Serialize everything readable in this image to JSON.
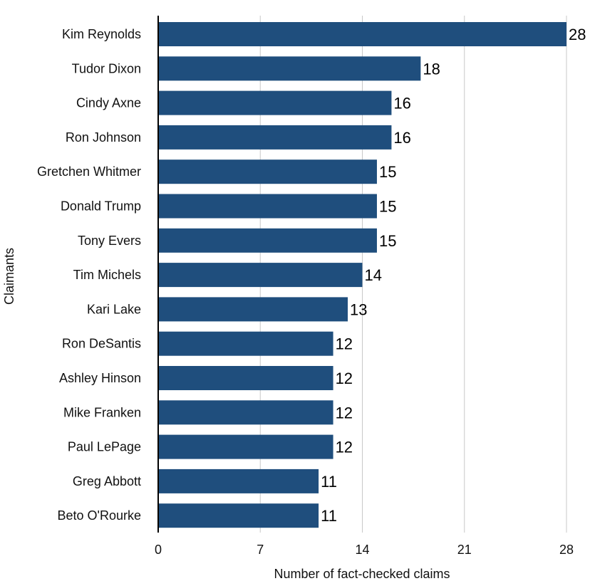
{
  "chart_data": {
    "type": "bar",
    "orientation": "horizontal",
    "title": "",
    "xlabel": "Number of fact-checked claims",
    "ylabel": "Claimants",
    "categories": [
      "Kim Reynolds",
      "Tudor Dixon",
      "Cindy Axne",
      "Ron Johnson",
      "Gretchen Whitmer",
      "Donald Trump",
      "Tony Evers",
      "Tim Michels",
      "Kari Lake",
      "Ron DeSantis",
      "Ashley Hinson",
      "Mike Franken",
      "Paul LePage",
      "Greg Abbott",
      "Beto O'Rourke"
    ],
    "values": [
      28,
      18,
      16,
      16,
      15,
      15,
      15,
      14,
      13,
      12,
      12,
      12,
      12,
      11,
      11
    ],
    "xlim": [
      0,
      28
    ],
    "xticks": [
      0,
      7,
      14,
      21,
      28
    ],
    "grid": "vertical",
    "bar_color": "#1f4e7d",
    "data_labels": true
  }
}
